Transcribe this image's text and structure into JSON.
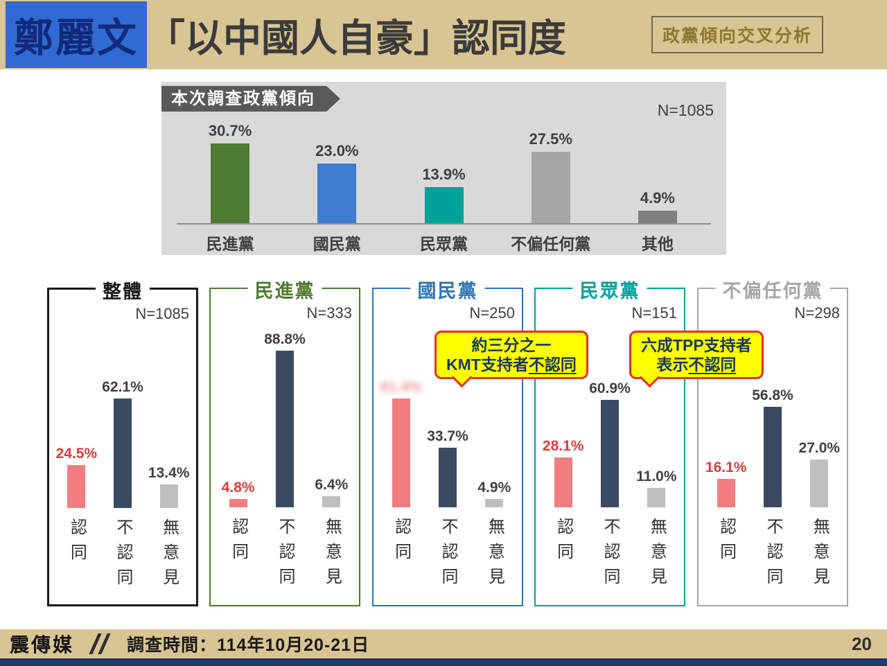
{
  "header": {
    "title_highlight": "鄭麗文",
    "title_rest": "「以中國人自豪」認同度",
    "badge": "政黨傾向交叉分析"
  },
  "party_chart": {
    "tag": "本次調查政黨傾向",
    "n_label": "N=1085",
    "categories": [
      "民進黨",
      "國民黨",
      "民眾黨",
      "不偏任何黨",
      "其他"
    ],
    "values": [
      30.7,
      23.0,
      13.9,
      27.5,
      4.9
    ],
    "value_labels": [
      "30.7%",
      "23.0%",
      "13.9%",
      "27.5%",
      "4.9%"
    ],
    "bar_colors": [
      "#4e7b31",
      "#3e7cd0",
      "#00a29a",
      "#a6a6a6",
      "#7f7f7f"
    ]
  },
  "answers": [
    "認同",
    "不認同",
    "無意見"
  ],
  "bar_palette": [
    "#f27d80",
    "#394a63",
    "#bfbfbf"
  ],
  "panels": [
    {
      "title": "整體",
      "n_label": "N=1085",
      "accent": "#1a1a1a",
      "border_width": 3,
      "values": [
        24.5,
        62.1,
        13.4
      ],
      "value_labels": [
        "24.5%",
        "62.1%",
        "13.4%"
      ],
      "obscured": [
        false,
        false,
        false
      ]
    },
    {
      "title": "民進黨",
      "n_label": "N=333",
      "accent": "#4e7b31",
      "border_width": 2,
      "values": [
        4.8,
        88.8,
        6.4
      ],
      "value_labels": [
        "4.8%",
        "88.8%",
        "6.4%"
      ],
      "obscured": [
        false,
        false,
        false
      ]
    },
    {
      "title": "國民黨",
      "n_label": "N=250",
      "accent": "#2e74b5",
      "border_width": 2,
      "values": [
        61.4,
        33.7,
        4.9
      ],
      "value_labels": [
        "61.4%",
        "33.7%",
        "4.9%"
      ],
      "obscured": [
        true,
        false,
        false
      ]
    },
    {
      "title": "民眾黨",
      "n_label": "N=151",
      "accent": "#00a09a",
      "border_width": 2,
      "values": [
        28.1,
        60.9,
        11.0
      ],
      "value_labels": [
        "28.1%",
        "60.9%",
        "11.0%"
      ],
      "obscured": [
        false,
        false,
        false
      ]
    },
    {
      "title": "不偏任何黨",
      "n_label": "N=298",
      "accent": "#a6a6a6",
      "border_width": 2,
      "values": [
        16.1,
        56.8,
        27.0
      ],
      "value_labels": [
        "16.1%",
        "56.8%",
        "27.0%"
      ],
      "obscured": [
        false,
        false,
        false
      ]
    }
  ],
  "callouts": [
    {
      "line1": "約三分之一",
      "line2_pre": "KMT支持者",
      "line2_underlined": "不認同"
    },
    {
      "line1": "六成TPP支持者",
      "line2_pre": "表示",
      "line2_underlined": "不認同"
    }
  ],
  "footer": {
    "brand": "震傳媒",
    "survey_time": "調查時間：114年10月20-21日",
    "page_number": "20"
  },
  "colors": {
    "header_bg": "#d9c493",
    "badge_text": "#8a7a2e",
    "highlight_bg": "#2f6bd0",
    "highlight_text": "#13297a",
    "gray_panel_bg": "#d9d9d9",
    "tag_bg": "#595959",
    "agree_bar": "#f27d80",
    "disagree_bar": "#394a63",
    "no_opinion_bar": "#bfbfbf",
    "agree_label_red": "#e23b3b",
    "callout_bg": "#ffff00",
    "callout_border": "#e03030",
    "callout_text": "#17375e",
    "footer_strip": "#1e3a66"
  },
  "chart_data": [
    {
      "type": "bar",
      "title": "本次調查政黨傾向",
      "n": "N=1085",
      "unit": "%",
      "grid": false,
      "ylim": [
        0,
        35
      ],
      "categories": [
        "民進黨",
        "國民黨",
        "民眾黨",
        "不偏任何黨",
        "其他"
      ],
      "values": [
        30.7,
        23.0,
        13.9,
        27.5,
        4.9
      ]
    },
    {
      "type": "bar",
      "title": "整體",
      "n": "N=1085",
      "unit": "%",
      "ylim": [
        0,
        95
      ],
      "categories": [
        "認同",
        "不認同",
        "無意見"
      ],
      "values": [
        24.5,
        62.1,
        13.4
      ]
    },
    {
      "type": "bar",
      "title": "民進黨",
      "n": "N=333",
      "unit": "%",
      "ylim": [
        0,
        95
      ],
      "categories": [
        "認同",
        "不認同",
        "無意見"
      ],
      "values": [
        4.8,
        88.8,
        6.4
      ]
    },
    {
      "type": "bar",
      "title": "國民黨",
      "n": "N=250",
      "unit": "%",
      "ylim": [
        0,
        95
      ],
      "categories": [
        "認同",
        "不認同",
        "無意見"
      ],
      "values": [
        61.4,
        33.7,
        4.9
      ],
      "note": "認同 value label is blurred/obscured in the image; value estimated from bar height"
    },
    {
      "type": "bar",
      "title": "民眾黨",
      "n": "N=151",
      "unit": "%",
      "ylim": [
        0,
        95
      ],
      "categories": [
        "認同",
        "不認同",
        "無意見"
      ],
      "values": [
        28.1,
        60.9,
        11.0
      ]
    },
    {
      "type": "bar",
      "title": "不偏任何黨",
      "n": "N=298",
      "unit": "%",
      "ylim": [
        0,
        95
      ],
      "categories": [
        "認同",
        "不認同",
        "無意見"
      ],
      "values": [
        16.1,
        56.8,
        27.0
      ]
    }
  ]
}
